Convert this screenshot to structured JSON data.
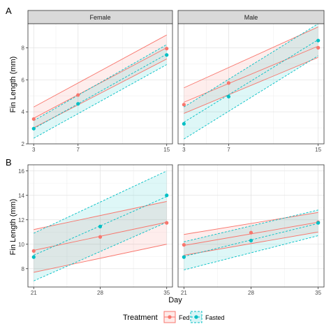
{
  "panel_labels": [
    "A",
    "B"
  ],
  "colors": {
    "fed": "#f8766d",
    "fasted": "#00bfc4",
    "overlap": "#dcdcdc"
  },
  "chart_data": [
    {
      "type": "line",
      "id": "A",
      "ylabel": "Fin Length (mm)",
      "xlim": [
        3,
        15
      ],
      "ylim": [
        2,
        9.5
      ],
      "xticks": [
        3,
        7,
        15
      ],
      "yticks": [
        2,
        4,
        6,
        8
      ],
      "grid": true,
      "facets": [
        {
          "strip": "Female",
          "points": {
            "Fed": {
              "x": [
                3,
                7,
                15
              ],
              "y": [
                3.55,
                5.05,
                7.95
              ]
            },
            "Fasted": {
              "x": [
                3,
                7,
                15
              ],
              "y": [
                2.95,
                4.5,
                7.55
              ]
            }
          },
          "fit": {
            "Fed": {
              "x": [
                3,
                15
              ],
              "y": [
                3.6,
                8.0
              ],
              "lower": [
                3.0,
                7.3
              ],
              "upper": [
                4.3,
                8.8
              ]
            },
            "Fasted": {
              "x": [
                3,
                15
              ],
              "y": [
                2.95,
                7.6
              ],
              "lower": [
                2.35,
                6.95
              ],
              "upper": [
                3.45,
                8.2
              ]
            }
          }
        },
        {
          "strip": "Male",
          "points": {
            "Fed": {
              "x": [
                3,
                7,
                15
              ],
              "y": [
                4.45,
                5.8,
                8.0
              ]
            },
            "Fasted": {
              "x": [
                3,
                7,
                15
              ],
              "y": [
                3.25,
                4.95,
                8.45
              ]
            }
          },
          "fit": {
            "Fed": {
              "x": [
                3,
                15
              ],
              "y": [
                4.6,
                8.1
              ],
              "lower": [
                3.9,
                7.4
              ],
              "upper": [
                5.5,
                9.3
              ]
            },
            "Fasted": {
              "x": [
                3,
                15
              ],
              "y": [
                3.35,
                8.5
              ],
              "lower": [
                2.3,
                7.5
              ],
              "upper": [
                4.3,
                9.5
              ]
            }
          }
        }
      ]
    },
    {
      "type": "line",
      "id": "B",
      "xlabel": "Day",
      "ylabel": "Fin Length (mm)",
      "xlim": [
        21,
        35
      ],
      "ylim": [
        6.5,
        16.5
      ],
      "xticks": [
        21,
        28,
        35
      ],
      "yticks": [
        8,
        10,
        12,
        14,
        16
      ],
      "grid": true,
      "facets": [
        {
          "strip": "",
          "points": {
            "Fed": {
              "x": [
                21,
                28,
                35
              ],
              "y": [
                9.45,
                10.6,
                11.75
              ]
            },
            "Fasted": {
              "x": [
                21,
                28,
                35
              ],
              "y": [
                8.95,
                11.45,
                14.0
              ]
            }
          },
          "fit": {
            "Fed": {
              "x": [
                21,
                35
              ],
              "y": [
                9.5,
                11.8
              ],
              "lower": [
                7.7,
                10.0
              ],
              "upper": [
                11.2,
                13.5
              ]
            },
            "Fasted": {
              "x": [
                21,
                35
              ],
              "y": [
                9.1,
                13.9
              ],
              "lower": [
                7.0,
                11.8
              ],
              "upper": [
                10.9,
                16.0
              ]
            }
          }
        },
        {
          "strip": "",
          "points": {
            "Fed": {
              "x": [
                21,
                28,
                35
              ],
              "y": [
                9.95,
                10.95,
                11.8
              ]
            },
            "Fasted": {
              "x": [
                21,
                28,
                35
              ],
              "y": [
                8.95,
                10.3,
                11.75
              ]
            }
          },
          "fit": {
            "Fed": {
              "x": [
                21,
                35
              ],
              "y": [
                9.9,
                11.8
              ],
              "lower": [
                9.1,
                11.0
              ],
              "upper": [
                10.8,
                12.6
              ]
            },
            "Fasted": {
              "x": [
                21,
                35
              ],
              "y": [
                9.0,
                11.7
              ],
              "lower": [
                7.9,
                10.7
              ],
              "upper": [
                10.2,
                12.8
              ]
            }
          }
        }
      ]
    }
  ],
  "legend": {
    "title": "Treatment",
    "placement": "bottom",
    "items": [
      {
        "key": "fed",
        "label": "Fed"
      },
      {
        "key": "fasted",
        "label": "Fasted"
      }
    ]
  }
}
